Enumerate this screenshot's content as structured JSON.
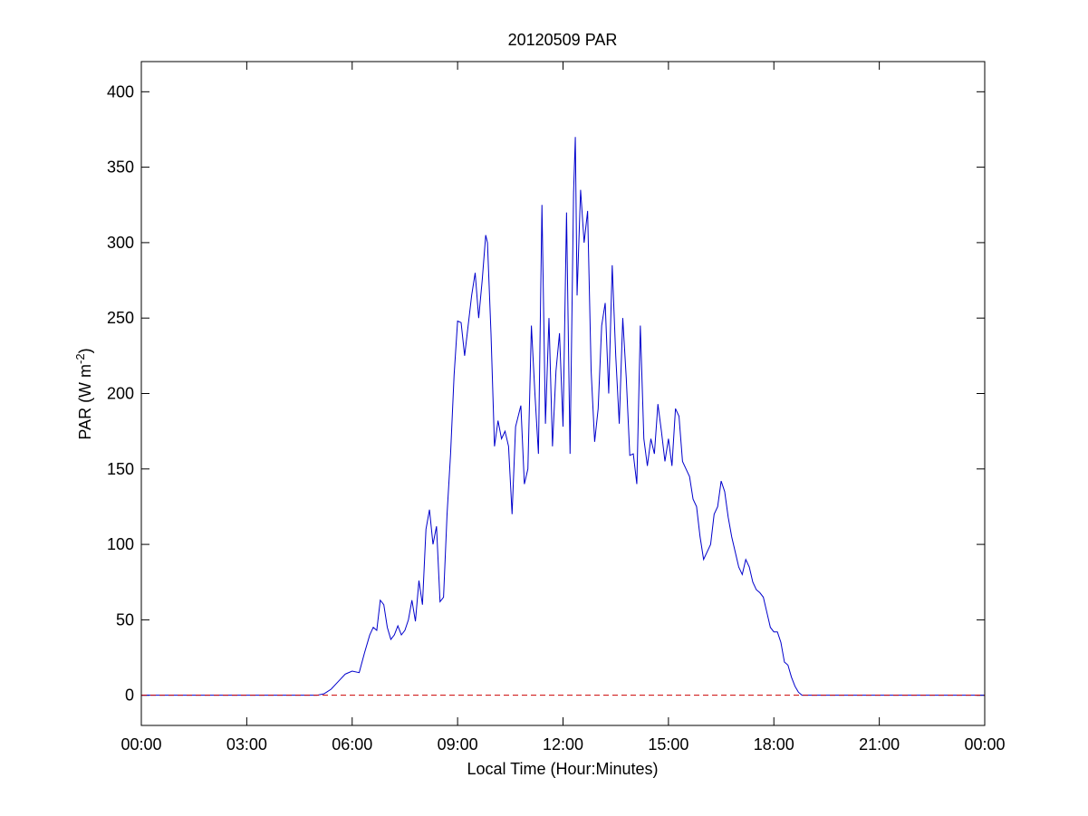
{
  "chart_data": {
    "type": "line",
    "title": "20120509 PAR",
    "xlabel": "Local Time (Hour:Minutes)",
    "ylabel_main": "PAR (W m",
    "ylabel_sup": "-2",
    "ylabel_close": ")",
    "xlim_hours": [
      0,
      24
    ],
    "ylim": [
      -20,
      420
    ],
    "grid": false,
    "x_ticks": [
      {
        "hour": 0,
        "label": "00:00"
      },
      {
        "hour": 3,
        "label": "03:00"
      },
      {
        "hour": 6,
        "label": "06:00"
      },
      {
        "hour": 9,
        "label": "09:00"
      },
      {
        "hour": 12,
        "label": "12:00"
      },
      {
        "hour": 15,
        "label": "15:00"
      },
      {
        "hour": 18,
        "label": "18:00"
      },
      {
        "hour": 21,
        "label": "21:00"
      },
      {
        "hour": 24,
        "label": "00:00"
      }
    ],
    "y_ticks": [
      {
        "value": 0,
        "label": "0"
      },
      {
        "value": 50,
        "label": "50"
      },
      {
        "value": 100,
        "label": "100"
      },
      {
        "value": 150,
        "label": "150"
      },
      {
        "value": 200,
        "label": "200"
      },
      {
        "value": 250,
        "label": "250"
      },
      {
        "value": 300,
        "label": "300"
      },
      {
        "value": 350,
        "label": "350"
      },
      {
        "value": 400,
        "label": "400"
      }
    ],
    "series": [
      {
        "color": "#0000cc",
        "style": "solid",
        "points": [
          [
            0,
            0
          ],
          [
            5.0,
            0
          ],
          [
            5.2,
            1
          ],
          [
            5.4,
            4
          ],
          [
            5.6,
            9
          ],
          [
            5.8,
            14
          ],
          [
            6.0,
            16
          ],
          [
            6.2,
            15
          ],
          [
            6.35,
            28
          ],
          [
            6.5,
            40
          ],
          [
            6.6,
            45
          ],
          [
            6.7,
            43
          ],
          [
            6.8,
            63
          ],
          [
            6.9,
            60
          ],
          [
            7.0,
            45
          ],
          [
            7.1,
            37
          ],
          [
            7.2,
            40
          ],
          [
            7.3,
            46
          ],
          [
            7.4,
            40
          ],
          [
            7.5,
            43
          ],
          [
            7.6,
            50
          ],
          [
            7.7,
            63
          ],
          [
            7.8,
            49
          ],
          [
            7.9,
            76
          ],
          [
            8.0,
            60
          ],
          [
            8.1,
            110
          ],
          [
            8.2,
            123
          ],
          [
            8.3,
            100
          ],
          [
            8.4,
            112
          ],
          [
            8.5,
            62
          ],
          [
            8.6,
            65
          ],
          [
            8.7,
            120
          ],
          [
            8.8,
            160
          ],
          [
            8.9,
            212
          ],
          [
            9.0,
            248
          ],
          [
            9.1,
            247
          ],
          [
            9.2,
            225
          ],
          [
            9.3,
            245
          ],
          [
            9.4,
            265
          ],
          [
            9.5,
            280
          ],
          [
            9.6,
            250
          ],
          [
            9.7,
            275
          ],
          [
            9.8,
            305
          ],
          [
            9.85,
            300
          ],
          [
            9.95,
            240
          ],
          [
            10.05,
            165
          ],
          [
            10.15,
            182
          ],
          [
            10.25,
            170
          ],
          [
            10.35,
            175
          ],
          [
            10.45,
            165
          ],
          [
            10.55,
            120
          ],
          [
            10.65,
            178
          ],
          [
            10.8,
            192
          ],
          [
            10.9,
            140
          ],
          [
            11.0,
            150
          ],
          [
            11.1,
            245
          ],
          [
            11.2,
            200
          ],
          [
            11.3,
            160
          ],
          [
            11.4,
            325
          ],
          [
            11.5,
            180
          ],
          [
            11.6,
            250
          ],
          [
            11.7,
            165
          ],
          [
            11.8,
            215
          ],
          [
            11.9,
            240
          ],
          [
            12.0,
            178
          ],
          [
            12.1,
            320
          ],
          [
            12.2,
            160
          ],
          [
            12.3,
            333
          ],
          [
            12.35,
            370
          ],
          [
            12.4,
            265
          ],
          [
            12.5,
            335
          ],
          [
            12.6,
            300
          ],
          [
            12.7,
            321
          ],
          [
            12.8,
            215
          ],
          [
            12.9,
            168
          ],
          [
            13.0,
            190
          ],
          [
            13.1,
            245
          ],
          [
            13.2,
            260
          ],
          [
            13.3,
            200
          ],
          [
            13.4,
            285
          ],
          [
            13.5,
            225
          ],
          [
            13.6,
            180
          ],
          [
            13.7,
            250
          ],
          [
            13.8,
            210
          ],
          [
            13.9,
            159
          ],
          [
            14.0,
            160
          ],
          [
            14.1,
            140
          ],
          [
            14.2,
            245
          ],
          [
            14.3,
            170
          ],
          [
            14.4,
            152
          ],
          [
            14.5,
            170
          ],
          [
            14.6,
            160
          ],
          [
            14.7,
            193
          ],
          [
            14.8,
            175
          ],
          [
            14.9,
            155
          ],
          [
            15.0,
            170
          ],
          [
            15.1,
            152
          ],
          [
            15.2,
            190
          ],
          [
            15.3,
            185
          ],
          [
            15.4,
            155
          ],
          [
            15.5,
            150
          ],
          [
            15.6,
            145
          ],
          [
            15.7,
            130
          ],
          [
            15.8,
            125
          ],
          [
            15.9,
            105
          ],
          [
            16.0,
            90
          ],
          [
            16.1,
            95
          ],
          [
            16.2,
            100
          ],
          [
            16.3,
            120
          ],
          [
            16.4,
            125
          ],
          [
            16.5,
            142
          ],
          [
            16.6,
            135
          ],
          [
            16.7,
            118
          ],
          [
            16.8,
            105
          ],
          [
            16.9,
            95
          ],
          [
            17.0,
            85
          ],
          [
            17.1,
            80
          ],
          [
            17.2,
            90
          ],
          [
            17.3,
            85
          ],
          [
            17.4,
            75
          ],
          [
            17.5,
            70
          ],
          [
            17.6,
            68
          ],
          [
            17.7,
            65
          ],
          [
            17.8,
            55
          ],
          [
            17.9,
            45
          ],
          [
            18.0,
            42
          ],
          [
            18.1,
            42
          ],
          [
            18.2,
            35
          ],
          [
            18.3,
            22
          ],
          [
            18.4,
            20
          ],
          [
            18.5,
            12
          ],
          [
            18.6,
            6
          ],
          [
            18.7,
            2
          ],
          [
            18.8,
            0
          ],
          [
            24.0,
            0
          ]
        ]
      },
      {
        "color": "#cc0000",
        "style": "dashed",
        "points": [
          [
            0,
            0
          ],
          [
            24,
            0
          ]
        ]
      }
    ]
  }
}
